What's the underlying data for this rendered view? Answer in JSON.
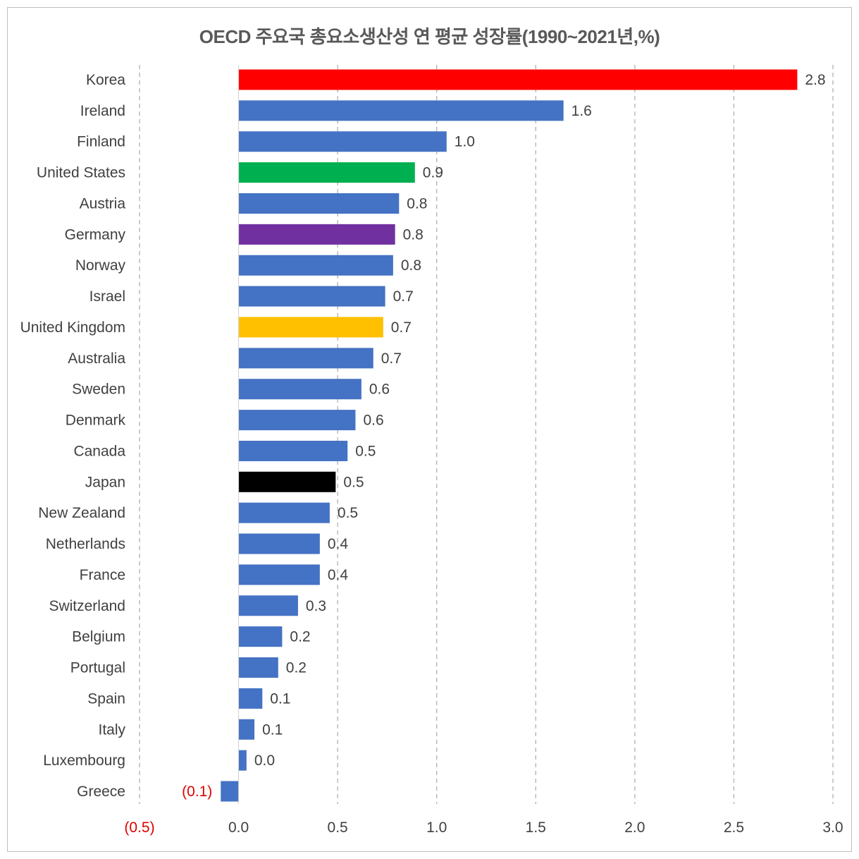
{
  "chart_data": {
    "type": "bar",
    "orientation": "horizontal",
    "title": "OECD 주요국 총요소생산성 연 평균 성장률(1990~2021년,%)",
    "categories": [
      "Korea",
      "Ireland",
      "Finland",
      "United States",
      "Austria",
      "Germany",
      "Norway",
      "Israel",
      "United Kingdom",
      "Australia",
      "Sweden",
      "Denmark",
      "Canada",
      "Japan",
      "New Zealand",
      "Netherlands",
      "France",
      "Switzerland",
      "Belgium",
      "Portugal",
      "Spain",
      "Italy",
      "Luxembourg",
      "Greece"
    ],
    "values": [
      2.82,
      1.64,
      1.05,
      0.89,
      0.81,
      0.79,
      0.78,
      0.74,
      0.73,
      0.68,
      0.62,
      0.59,
      0.55,
      0.49,
      0.46,
      0.41,
      0.41,
      0.3,
      0.22,
      0.2,
      0.12,
      0.08,
      0.04,
      -0.09
    ],
    "value_labels": [
      "2.8",
      "1.6",
      "1.0",
      "0.9",
      "0.8",
      "0.8",
      "0.8",
      "0.7",
      "0.7",
      "0.7",
      "0.6",
      "0.6",
      "0.5",
      "0.5",
      "0.5",
      "0.4",
      "0.4",
      "0.3",
      "0.2",
      "0.2",
      "0.1",
      "0.1",
      "0.0",
      "(0.1)"
    ],
    "colors": [
      "#ff0000",
      "#4472c4",
      "#4472c4",
      "#00b050",
      "#4472c4",
      "#7030a0",
      "#4472c4",
      "#4472c4",
      "#ffc000",
      "#4472c4",
      "#4472c4",
      "#4472c4",
      "#4472c4",
      "#000000",
      "#4472c4",
      "#4472c4",
      "#4472c4",
      "#4472c4",
      "#4472c4",
      "#4472c4",
      "#4472c4",
      "#4472c4",
      "#4472c4",
      "#4472c4"
    ],
    "xlim": [
      -0.5,
      3.0
    ],
    "xticks": [
      -0.5,
      0.0,
      0.5,
      1.0,
      1.5,
      2.0,
      2.5,
      3.0
    ],
    "xtick_labels": [
      "(0.5)",
      "0.0",
      "0.5",
      "1.0",
      "1.5",
      "2.0",
      "2.5",
      "3.0"
    ],
    "negative_label_color": "#e00000",
    "grid": "vertical dashed",
    "legend": "none"
  }
}
